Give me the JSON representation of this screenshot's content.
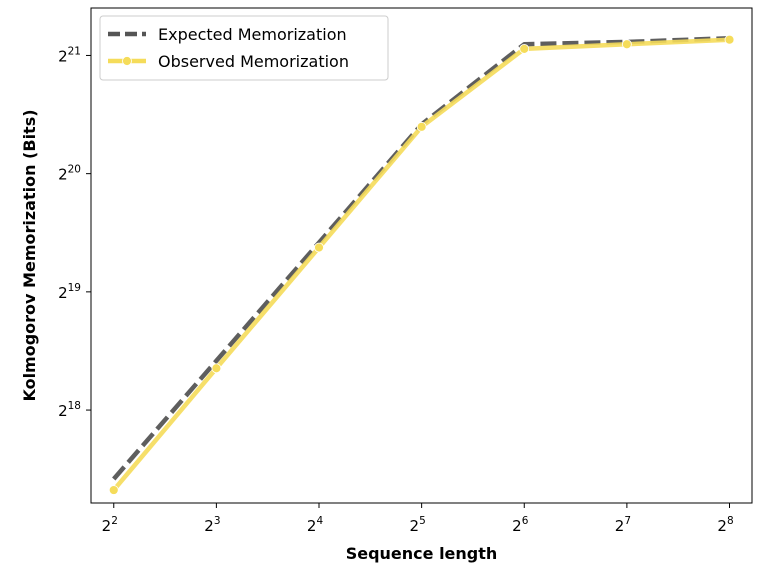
{
  "chart_data": {
    "type": "line",
    "title": "",
    "xlabel": "Sequence length",
    "ylabel": "Kolmogorov Memorization (Bits)",
    "x_scale": "log2",
    "y_scale": "log2",
    "x_ticks": [
      {
        "value": 4,
        "base": "2",
        "exp": "2"
      },
      {
        "value": 8,
        "base": "2",
        "exp": "3"
      },
      {
        "value": 16,
        "base": "2",
        "exp": "4"
      },
      {
        "value": 32,
        "base": "2",
        "exp": "5"
      },
      {
        "value": 64,
        "base": "2",
        "exp": "6"
      },
      {
        "value": 128,
        "base": "2",
        "exp": "7"
      },
      {
        "value": 256,
        "base": "2",
        "exp": "8"
      }
    ],
    "y_ticks": [
      {
        "value": 262144,
        "base": "2",
        "exp": "18"
      },
      {
        "value": 524288,
        "base": "2",
        "exp": "19"
      },
      {
        "value": 1048576,
        "base": "2",
        "exp": "20"
      },
      {
        "value": 2097152,
        "base": "2",
        "exp": "21"
      }
    ],
    "xlim": [
      3.43,
      298
    ],
    "ylim": [
      152000,
      2770000
    ],
    "x": [
      4,
      8,
      16,
      32,
      64,
      128,
      256
    ],
    "series": [
      {
        "name": "Expected Memorization",
        "values": [
          175000,
          350000,
          700000,
          1400000,
          2240000,
          2270000,
          2320000
        ],
        "color": "#555555",
        "style": "dashed"
      },
      {
        "name": "Observed Memorization",
        "values": [
          164000,
          335000,
          680000,
          1380000,
          2180000,
          2240000,
          2300000
        ],
        "color": "#f5dc5a",
        "style": "solid-markers"
      }
    ],
    "legend_position": "top-left",
    "grid": false
  }
}
